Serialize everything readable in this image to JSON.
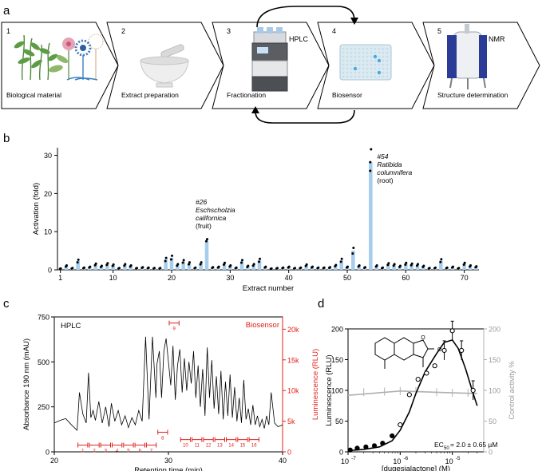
{
  "panel_a": {
    "label": "a",
    "steps": [
      {
        "num": "1",
        "caption": "Biological material"
      },
      {
        "num": "2",
        "caption": "Extract preparation"
      },
      {
        "num": "3",
        "caption": "Fractionation",
        "tag": "HPLC"
      },
      {
        "num": "4",
        "caption": "Biosensor"
      },
      {
        "num": "5",
        "caption": "Structure determination",
        "tag": "NMR"
      }
    ]
  },
  "chart_data": [
    {
      "panel": "b",
      "type": "bar",
      "xlabel": "Extract number",
      "ylabel": "Activation (fold)",
      "xlim": [
        0.5,
        72.5
      ],
      "ylim": [
        0,
        32
      ],
      "xticks": [
        1,
        10,
        20,
        30,
        40,
        50,
        60,
        70
      ],
      "yticks": [
        0,
        10,
        20,
        30
      ],
      "bar_color": "#a6cdee",
      "values": [
        0.3,
        1.0,
        0.4,
        2.3,
        0.5,
        0.7,
        1.4,
        0.9,
        1.5,
        1.2,
        0.4,
        1.3,
        1.0,
        0.4,
        0.6,
        0.5,
        0.4,
        0.4,
        2.7,
        3.2,
        1.3,
        2.2,
        1.7,
        0.5,
        1.7,
        7.5,
        0.6,
        0.7,
        1.6,
        1.0,
        0.5,
        2.2,
        0.9,
        1.3,
        2.5,
        0.7,
        0.3,
        0.4,
        0.5,
        0.7,
        0.4,
        0.5,
        1.2,
        0.7,
        0.5,
        0.5,
        0.6,
        1.1,
        2.5,
        0.7,
        5.0,
        1.0,
        0.6,
        28.2,
        1.0,
        0.5,
        1.5,
        1.3,
        0.9,
        1.6,
        1.4,
        1.3,
        0.9,
        0.4,
        0.5,
        2.4,
        0.5,
        0.7,
        0.4,
        1.6,
        1.0,
        0.8
      ],
      "annotations": [
        {
          "extract": 26,
          "id": "#26",
          "genus": "Eschscholzia",
          "species": "californica",
          "part": "(fruit)"
        },
        {
          "extract": 54,
          "id": "#54",
          "genus": "Ratibida",
          "species": "columnifera",
          "part": "(root)"
        }
      ]
    },
    {
      "panel": "c",
      "type": "line",
      "title": "HPLC",
      "xlabel": "Retention time (min)",
      "ylabel": "Absorbance 190 nm (mAU)",
      "ylabel_right": "Luminescence (RLU)",
      "right_label": "Biosensor",
      "xlim": [
        20,
        40
      ],
      "ylim": [
        0,
        750
      ],
      "ylim_right": [
        0,
        22000
      ],
      "xticks": [
        20,
        30,
        40
      ],
      "yticks": [
        0,
        250,
        500,
        750
      ],
      "yticks_right": [
        "0",
        "5k",
        "10k",
        "15k",
        "20k"
      ],
      "trace_color": "#000000",
      "biosensor_color": "#e0201b",
      "x": [
        20,
        20.5,
        21,
        21.5,
        22,
        22.2,
        22.5,
        22.8,
        23,
        23.2,
        23.4,
        23.6,
        23.9,
        24.2,
        24.5,
        24.8,
        25,
        25.3,
        25.6,
        25.9,
        26.2,
        26.5,
        26.8,
        27.1,
        27.4,
        27.7,
        28,
        28.3,
        28.6,
        28.9,
        29,
        29.2,
        29.4,
        29.6,
        29.8,
        30,
        30.2,
        30.4,
        30.6,
        30.8,
        31,
        31.2,
        31.4,
        31.6,
        31.8,
        32,
        32.2,
        32.4,
        32.6,
        32.8,
        33,
        33.2,
        33.4,
        33.6,
        33.8,
        34,
        34.2,
        34.4,
        34.6,
        34.8,
        35,
        35.2,
        35.4,
        35.6,
        35.8,
        36,
        36.2,
        36.4,
        36.6,
        36.8,
        37,
        37.2,
        37.4,
        37.6,
        37.8,
        38,
        38.2,
        38.4,
        38.6,
        38.8,
        39,
        39.3,
        39.6,
        40
      ],
      "y": [
        160,
        175,
        185,
        150,
        120,
        330,
        210,
        160,
        440,
        190,
        230,
        175,
        280,
        160,
        250,
        140,
        270,
        170,
        230,
        150,
        200,
        135,
        190,
        150,
        230,
        170,
        640,
        180,
        640,
        300,
        490,
        560,
        300,
        560,
        630,
        500,
        370,
        590,
        290,
        480,
        570,
        330,
        520,
        340,
        500,
        380,
        560,
        300,
        480,
        250,
        460,
        200,
        580,
        300,
        510,
        240,
        420,
        210,
        450,
        180,
        390,
        200,
        430,
        190,
        360,
        170,
        300,
        160,
        400,
        180,
        240,
        150,
        260,
        150,
        200,
        140,
        180,
        130,
        200,
        150,
        330,
        160,
        140,
        150
      ],
      "fractions": [
        {
          "label": "1",
          "x": [
            22.0,
            23.0
          ],
          "y": 1100
        },
        {
          "label": "2",
          "x": [
            23.0,
            24.0
          ],
          "y": 1100
        },
        {
          "label": "3",
          "x": [
            24.0,
            25.0
          ],
          "y": 1100
        },
        {
          "label": "4",
          "x": [
            25.0,
            26.0
          ],
          "y": 1100
        },
        {
          "label": "5",
          "x": [
            26.0,
            27.0
          ],
          "y": 1100
        },
        {
          "label": "6",
          "x": [
            27.0,
            28.0
          ],
          "y": 1100
        },
        {
          "label": "7",
          "x": [
            28.0,
            29.0
          ],
          "y": 1100
        },
        {
          "label": "8",
          "x": [
            29.0,
            30.0
          ],
          "y": 3200
        },
        {
          "label": "9",
          "x": [
            30.0,
            31.0
          ],
          "y": 21000
        },
        {
          "label": "10",
          "x": [
            31.0,
            32.0
          ],
          "y": 2000
        },
        {
          "label": "11",
          "x": [
            32.0,
            33.0
          ],
          "y": 2000
        },
        {
          "label": "12",
          "x": [
            33.0,
            34.0
          ],
          "y": 2000
        },
        {
          "label": "13",
          "x": [
            34.0,
            35.0
          ],
          "y": 2000
        },
        {
          "label": "14",
          "x": [
            35.0,
            36.0
          ],
          "y": 2000
        },
        {
          "label": "15",
          "x": [
            36.0,
            37.0
          ],
          "y": 2000
        },
        {
          "label": "16",
          "x": [
            37.0,
            38.0
          ],
          "y": 2000
        }
      ]
    },
    {
      "panel": "d",
      "type": "scatter",
      "xlabel": "[dugesialactone] (M)",
      "ylabel": "Luminescence (RLU)",
      "ylabel_right": "Control activity %",
      "xscale": "log",
      "xlim": [
        1e-07,
        4e-05
      ],
      "ylim": [
        0,
        200
      ],
      "ylim_right": [
        0,
        200
      ],
      "xticks": [
        "10",
        "10",
        "10"
      ],
      "xtick_exponents": [
        "-7",
        "-6",
        "-5"
      ],
      "yticks": [
        0,
        50,
        100,
        150,
        200
      ],
      "yticks_right": [
        0,
        50,
        100,
        150,
        200
      ],
      "ec50_label": "EC",
      "ec50_sub": "50",
      "ec50_value": "= 2.0 ± 0.65 µM",
      "control_color": "#b0b0b0",
      "fit": [
        [
          1e-07,
          2
        ],
        [
          2e-07,
          4
        ],
        [
          4e-07,
          8
        ],
        [
          7e-07,
          18
        ],
        [
          1e-06,
          35
        ],
        [
          1.5e-06,
          65
        ],
        [
          2e-06,
          95
        ],
        [
          3e-06,
          130
        ],
        [
          5e-06,
          160
        ],
        [
          7e-06,
          178
        ],
        [
          1e-05,
          182
        ],
        [
          1.3e-05,
          168
        ],
        [
          1.8e-05,
          135
        ],
        [
          2.5e-05,
          95
        ],
        [
          3e-05,
          75
        ]
      ],
      "points": [
        [
          1.1e-07,
          3
        ],
        [
          1.5e-07,
          6
        ],
        [
          2.2e-07,
          8
        ],
        [
          3.2e-07,
          10
        ],
        [
          4.6e-07,
          14
        ],
        [
          7e-07,
          26
        ],
        [
          1e-06,
          44
        ],
        [
          1.5e-06,
          93
        ],
        [
          2.2e-06,
          118
        ],
        [
          3.2e-06,
          128
        ],
        [
          4.6e-06,
          140
        ],
        [
          7e-06,
          165
        ],
        [
          1e-05,
          197
        ],
        [
          1.5e-05,
          165
        ],
        [
          2.5e-05,
          100
        ]
      ],
      "control": [
        [
          1e-07,
          92
        ],
        [
          1e-06,
          99
        ],
        [
          1e-05,
          96
        ],
        [
          3e-05,
          95
        ]
      ]
    }
  ]
}
